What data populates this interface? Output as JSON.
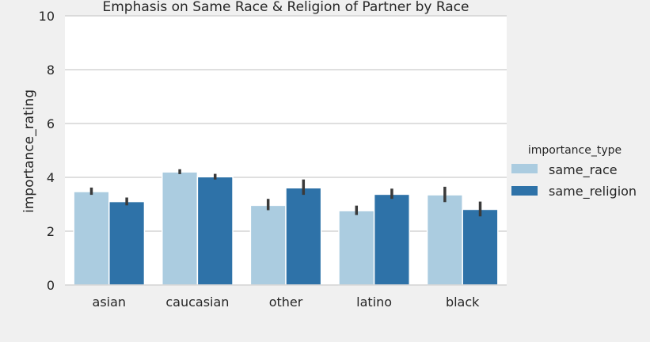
{
  "chart_data": {
    "type": "bar",
    "title": "Emphasis on Same Race & Religion of Partner by Race",
    "xlabel": "",
    "ylabel": "importance_rating",
    "ylim": [
      0,
      10
    ],
    "yticks": [
      "0",
      "2",
      "4",
      "6",
      "8",
      "10"
    ],
    "grid": true,
    "categories": [
      "asian",
      "caucasian",
      "other",
      "latino",
      "black"
    ],
    "legend": {
      "title": "importance_type",
      "placement": "right"
    },
    "series": [
      {
        "name": "same_race",
        "color": "#abcce0",
        "values": [
          3.47,
          4.2,
          2.96,
          2.76,
          3.35
        ],
        "ci_low": [
          3.35,
          4.12,
          2.78,
          2.6,
          3.08
        ],
        "ci_high": [
          3.62,
          4.3,
          3.2,
          2.95,
          3.65
        ]
      },
      {
        "name": "same_religion",
        "color": "#2e72a8",
        "values": [
          3.1,
          4.02,
          3.61,
          3.37,
          2.81
        ],
        "ci_low": [
          2.96,
          3.92,
          3.35,
          3.2,
          2.55
        ],
        "ci_high": [
          3.25,
          4.13,
          3.92,
          3.58,
          3.1
        ]
      }
    ],
    "errorbar_color": "#3a3a3a"
  }
}
